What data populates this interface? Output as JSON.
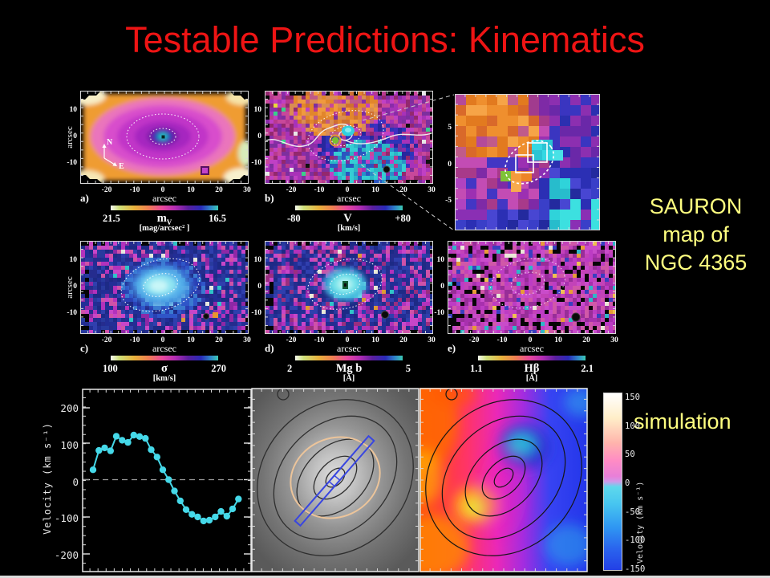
{
  "title": "Testable Predictions: Kinematics",
  "colors": {
    "background": "#000000",
    "title_red": "#ee1414",
    "label_yellow": "#ffff80",
    "curve_cyan": "#45d8e8"
  },
  "annotations": {
    "sauron": [
      "SAURON",
      "map of",
      "NGC 4365"
    ],
    "simulation": "simulation",
    "compass_n": "N",
    "compass_e": "E"
  },
  "panels": {
    "a": {
      "label": "a)",
      "xlabel": "arcsec",
      "ylabel": "arcsec",
      "xticks": [
        "-20",
        "-10",
        "0",
        "10",
        "20",
        "30"
      ],
      "yticks": [
        "10",
        "0",
        "-10"
      ],
      "cb_left": "21.5",
      "cb_sym": "m",
      "cb_sub": "V",
      "cb_right": "16.5",
      "cb_unit": "[mag/arcsec² ]"
    },
    "b": {
      "label": "b)",
      "xlabel": "arcsec",
      "xticks": [
        "-20",
        "-10",
        "0",
        "10",
        "20",
        "30"
      ],
      "yticks": [
        "10",
        "0",
        "-10"
      ],
      "cb_left": "-80",
      "cb_sym": "V",
      "cb_sub": "",
      "cb_right": "+80",
      "cb_unit": "[km/s]"
    },
    "c": {
      "label": "c)",
      "xlabel": "arcsec",
      "ylabel": "arcsec",
      "xticks": [
        "-20",
        "-10",
        "0",
        "10",
        "20",
        "30"
      ],
      "yticks": [
        "10",
        "0",
        "-10"
      ],
      "cb_left": "100",
      "cb_sym": "σ",
      "cb_sub": "",
      "cb_right": "270",
      "cb_unit": "[km/s]"
    },
    "d": {
      "label": "d)",
      "xlabel": "arcsec",
      "xticks": [
        "-20",
        "-10",
        "0",
        "10",
        "20",
        "30"
      ],
      "yticks": [
        "10",
        "0",
        "-10"
      ],
      "cb_left": "2",
      "cb_sym": "Mg b",
      "cb_sub": "",
      "cb_right": "5",
      "cb_unit": "[Å]"
    },
    "e": {
      "label": "e)",
      "xlabel": "arcsec",
      "xticks": [
        "-20",
        "-10",
        "0",
        "10",
        "20",
        "30"
      ],
      "yticks": [
        "10",
        "0",
        "-10"
      ],
      "cb_left": "1.1",
      "cb_sym": "Hβ",
      "cb_sub": "",
      "cb_right": "2.1",
      "cb_unit": "[Å]"
    },
    "inset": {
      "yticks": [
        "5",
        "0",
        "-5"
      ]
    }
  },
  "velocity_plot": {
    "ylabel": "Velocity (km s⁻¹)",
    "yticks": [
      "200",
      "100",
      "0",
      "-100",
      "-200"
    ]
  },
  "sim_colorbar": {
    "label": "Velocity (km s⁻¹)",
    "ticks": [
      "150",
      "100",
      "50",
      "0",
      "-50",
      "-100",
      "-150"
    ]
  },
  "chart_data": {
    "type": "line",
    "title": "",
    "xlabel": "",
    "ylabel": "Velocity (km s⁻¹)",
    "ylim": [
      -250,
      250
    ],
    "yticks": [
      200,
      100,
      0,
      -100,
      -200
    ],
    "x_ticks_labeled": false,
    "marker": "filled-circle",
    "zero_line": "dashed",
    "values": [
      27,
      80,
      87,
      79,
      119,
      108,
      102,
      122,
      118,
      113,
      82,
      62,
      27,
      0,
      -31,
      -58,
      -82,
      -95,
      -102,
      -113,
      -111,
      -102,
      -87,
      -100,
      -80,
      -53
    ]
  }
}
